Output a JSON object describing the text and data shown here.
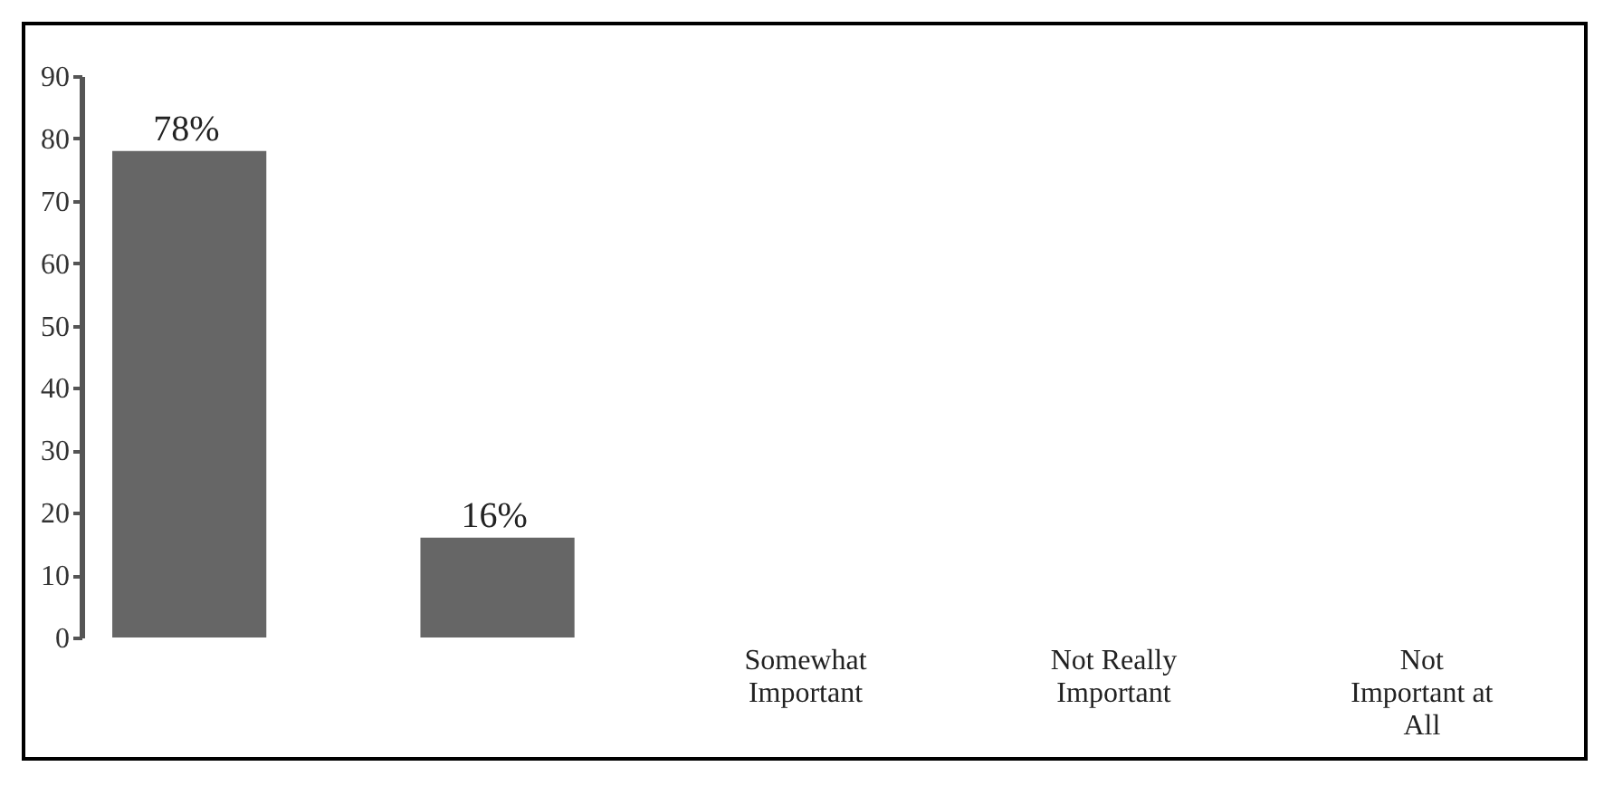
{
  "chart_data": {
    "type": "bar",
    "categories": [
      null,
      null,
      "Somewhat Important",
      "Not Really Important",
      "Not Important at All"
    ],
    "values": [
      78,
      16,
      null,
      null,
      null
    ],
    "color": "#666666",
    "value_labels": [
      "78%",
      "16%",
      null,
      null,
      null
    ],
    "ylim": [
      0,
      90
    ],
    "yticks": [
      0,
      10,
      20,
      30,
      40,
      50,
      60,
      70,
      80,
      90
    ],
    "grid": false
  }
}
